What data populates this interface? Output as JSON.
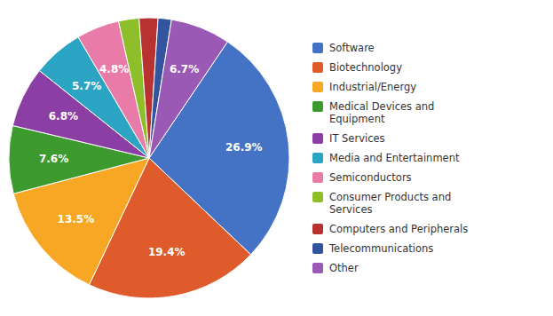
{
  "chart_data": {
    "type": "pie",
    "categories": [
      "Software",
      "Biotechnology",
      "Industrial/Energy",
      "Medical Devices and\nEquipment",
      "IT Services",
      "Media and Entertainment",
      "Semiconductors",
      "Consumer Products and\nServices",
      "Computers and Peripherals",
      "Telecommunications",
      "Other"
    ],
    "values": [
      26.9,
      19.4,
      13.5,
      7.6,
      6.8,
      5.7,
      4.8,
      2.3,
      2.1,
      1.5,
      6.7
    ],
    "value_labels": [
      "26.9%",
      "19.4%",
      "13.5%",
      "7.6%",
      "6.8%",
      "5.7%",
      "4.8%",
      null,
      null,
      null,
      "6.7%"
    ],
    "colors": [
      "#4472C4",
      "#E05B2B",
      "#F7A724",
      "#3C9A2E",
      "#8B3EA3",
      "#2BA5C3",
      "#E87BA7",
      "#8FBE2B",
      "#B83232",
      "#3355A0",
      "#9B59B6"
    ],
    "data_labels": true,
    "legend": "right"
  }
}
